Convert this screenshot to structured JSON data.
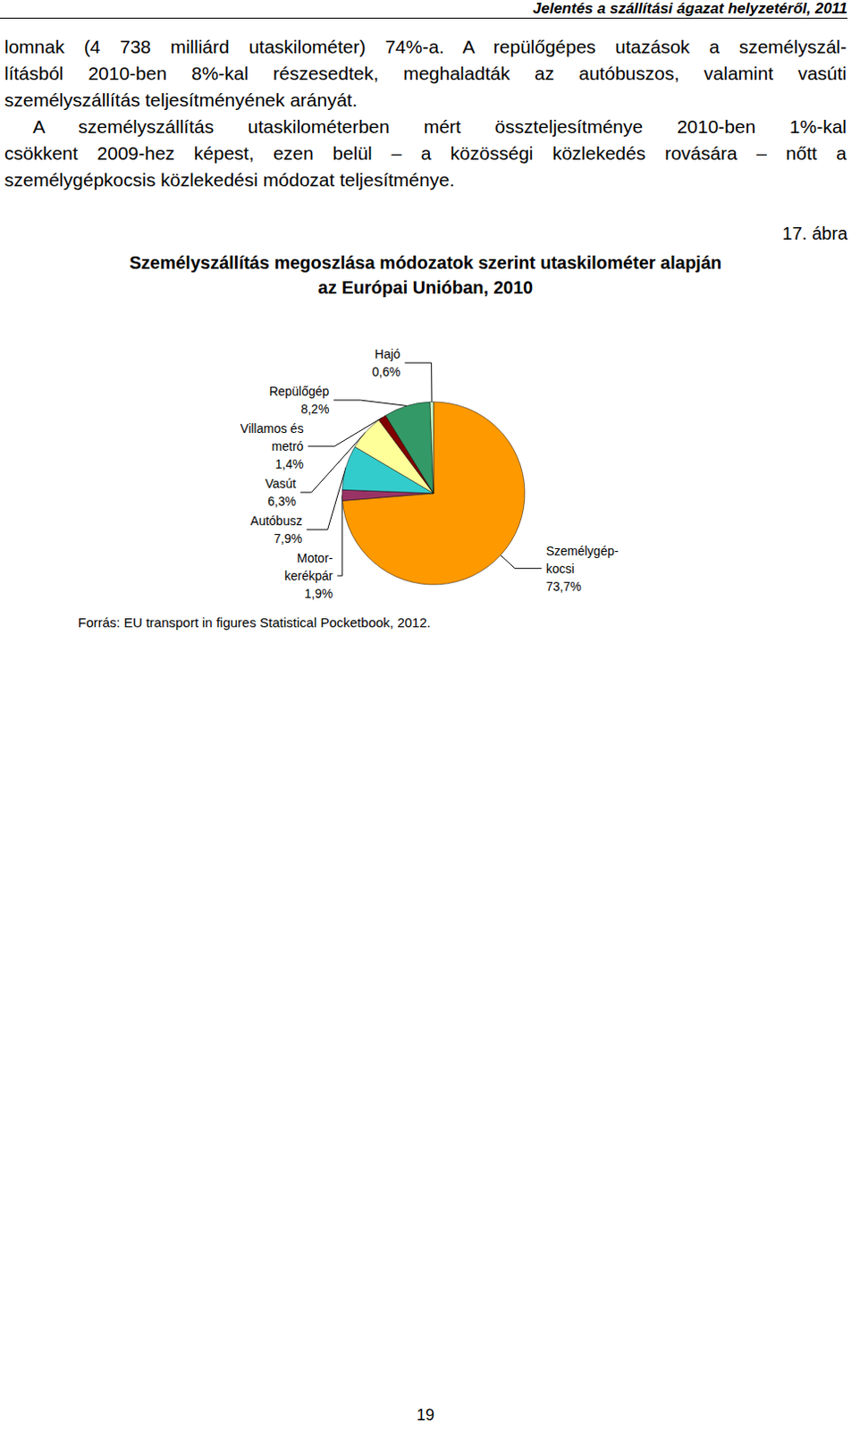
{
  "document": {
    "header": "Jelentés a szállítási ágazat helyzetéről, 2011",
    "paragraphs": [
      [
        "lomnak (4 738 milliárd utaskilométer) 74%-a. A repülőgépes utazások a személyszál-",
        "lításból 2010-ben 8%-kal részesedtek, meghaladták az autóbuszos, valamint vasúti",
        "személyszállítás teljesítményének arányát."
      ],
      [
        "A személyszállítás utaskilométerben mért összteljesítménye 2010-ben 1%-kal",
        "csökkent 2009-hez képest, ezen belül – a közösségi közlekedés rovására – nőtt a",
        "személygépkocsis közlekedési módozat teljesítménye."
      ]
    ],
    "figure_number": "17. ábra",
    "source": "Forrás: EU transport in figures Statistical Pocketbook, 2012.",
    "page_number": "19"
  },
  "chart_data": {
    "type": "pie",
    "title": "Személyszállítás megoszlása módozatok szerint utaskilométer alapján\naz Európai Unióban, 2010",
    "categories": [
      "Személygép-\nkocsi",
      "Motor-\nkerékpár",
      "Autóbusz",
      "Vasút",
      "Villamos és\nmetró",
      "Repülőgép",
      "Hajó"
    ],
    "values": [
      73.7,
      1.9,
      7.9,
      6.3,
      1.4,
      8.2,
      0.6
    ],
    "value_labels": [
      "73,7%",
      "1,9%",
      "7,9%",
      "6,3%",
      "1,4%",
      "8,2%",
      "0,6%"
    ],
    "colors": [
      "#ff9900",
      "#993366",
      "#33cccc",
      "#ffff99",
      "#800000",
      "#339966",
      "#ccffcc"
    ],
    "data_labels": true
  }
}
